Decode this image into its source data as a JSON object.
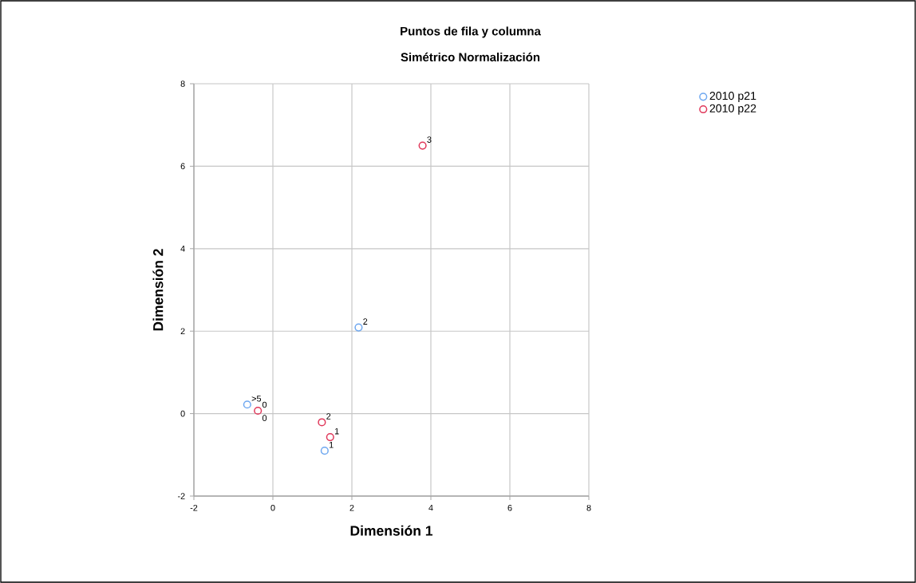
{
  "chart_data": {
    "type": "scatter",
    "title": "Puntos de fila y columna",
    "subtitle": "Simétrico Normalización",
    "xlabel": "Dimensión 1",
    "ylabel": "Dimensión 2",
    "series": [
      {
        "name": "2010 p21",
        "color": "#6fa8f0",
        "x": [
          -0.65,
          -0.38,
          2.17,
          1.31
        ],
        "values": [
          0.22,
          null,
          2.09,
          -0.9
        ]
      },
      {
        "name": "2010 p22",
        "color": "#e0395b",
        "x": [
          -0.38,
          3.79,
          1.24,
          1.45
        ],
        "values": [
          0.07,
          6.5,
          -0.21,
          -0.57
        ]
      }
    ],
    "annotations": [
      {
        "text": ">5",
        "x": -0.65,
        "y": 0.22
      },
      {
        "text": "0",
        "x": -0.38,
        "y": 0.07
      },
      {
        "text": "2",
        "x": 2.17,
        "y": 2.09
      },
      {
        "text": "1",
        "x": 1.31,
        "y": -0.9
      },
      {
        "text": "0",
        "x": -0.38,
        "y": 0.07
      },
      {
        "text": "3",
        "x": 3.79,
        "y": 6.5
      },
      {
        "text": "2",
        "x": 1.24,
        "y": -0.21
      },
      {
        "text": "1",
        "x": 1.45,
        "y": -0.57
      }
    ],
    "xlim": [
      -2,
      8
    ],
    "ylim": [
      -2,
      8
    ],
    "xticks": [
      -2,
      0,
      2,
      4,
      6,
      8
    ],
    "yticks": [
      -2,
      0,
      2,
      4,
      6,
      8
    ],
    "grid": true,
    "legend": "top right",
    "marker": "circle"
  }
}
